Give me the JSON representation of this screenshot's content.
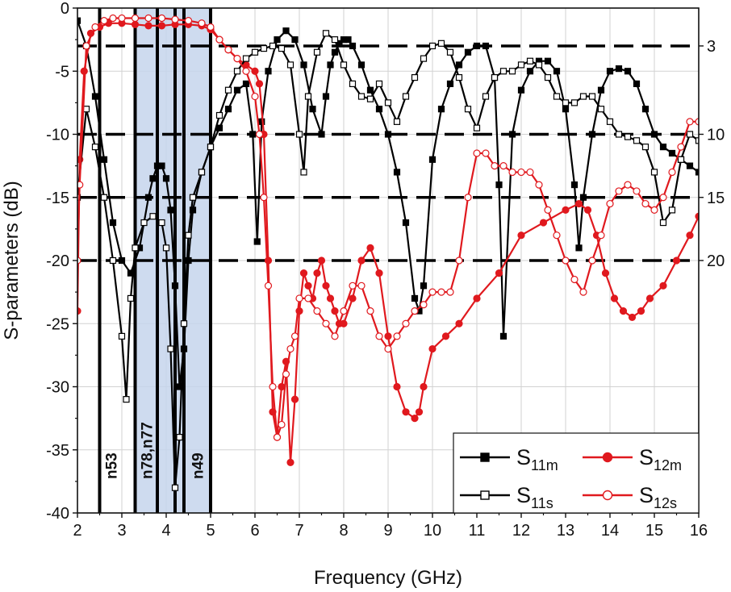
{
  "chart_data": {
    "type": "line",
    "xlabel": "Frequency (GHz)",
    "ylabel": "S-parameters (dB)",
    "xlim": [
      2,
      16
    ],
    "ylim": [
      -40,
      0
    ],
    "x_ticks": [
      "2",
      "3",
      "4",
      "5",
      "6",
      "7",
      "8",
      "9",
      "10",
      "11",
      "12",
      "13",
      "14",
      "15",
      "16"
    ],
    "y_ticks": [
      "0",
      "-5",
      "-10",
      "-15",
      "-20",
      "-25",
      "-30",
      "-35",
      "-40"
    ],
    "right_ticks": [
      "3",
      "10",
      "15",
      "20"
    ],
    "grid": true,
    "legend_position": "bottom-right",
    "reference_levels": [
      -3,
      -10,
      -15,
      -20
    ],
    "shaded_band": [
      3.3,
      5.0
    ],
    "band_lines": [
      2.5,
      3.3,
      3.8,
      4.2,
      4.4,
      5.0
    ],
    "band_labels": [
      {
        "text": "n53",
        "x": 2.75
      },
      {
        "text": "n78,n77",
        "x": 3.55
      },
      {
        "text": "n49",
        "x": 4.7
      }
    ],
    "series": [
      {
        "name": "S11m",
        "label_main": "S",
        "label_sub": "11m",
        "color": "#000000",
        "marker": "square-filled",
        "x": [
          2.0,
          2.2,
          2.4,
          2.6,
          2.8,
          3.0,
          3.2,
          3.4,
          3.6,
          3.7,
          3.8,
          3.9,
          4.0,
          4.1,
          4.2,
          4.3,
          4.4,
          4.5,
          4.6,
          4.8,
          5.0,
          5.2,
          5.4,
          5.6,
          5.8,
          5.95,
          6.05,
          6.15,
          6.3,
          6.5,
          6.7,
          6.9,
          7.1,
          7.3,
          7.5,
          7.6,
          7.7,
          7.8,
          7.9,
          8.0,
          8.1,
          8.2,
          8.4,
          8.6,
          8.8,
          9.0,
          9.2,
          9.4,
          9.6,
          9.7,
          9.8,
          10.0,
          10.2,
          10.4,
          10.6,
          10.8,
          11.0,
          11.2,
          11.4,
          11.5,
          11.6,
          11.8,
          12.0,
          12.2,
          12.4,
          12.6,
          12.8,
          13.0,
          13.2,
          13.3,
          13.4,
          13.6,
          13.8,
          14.0,
          14.2,
          14.4,
          14.6,
          14.8,
          15.0,
          15.2,
          15.4,
          15.6,
          15.8,
          16.0
        ],
        "y": [
          -1,
          -3,
          -7,
          -12,
          -17,
          -20,
          -21,
          -19,
          -15,
          -13.5,
          -12.5,
          -12.5,
          -13.5,
          -16,
          -22,
          -30,
          -27,
          -20,
          -16,
          -13,
          -11,
          -9.5,
          -8,
          -6.5,
          -6,
          -10,
          -18.5,
          -9,
          -5,
          -2.5,
          -1.8,
          -2.5,
          -4.5,
          -8,
          -10,
          -7,
          -4.5,
          -3.5,
          -2.8,
          -2.5,
          -2.5,
          -3,
          -4.5,
          -6.5,
          -8,
          -10,
          -13,
          -17,
          -23,
          -24,
          -22,
          -12,
          -8,
          -6,
          -4.5,
          -3.5,
          -3,
          -3,
          -5.5,
          -14,
          -26,
          -10,
          -6.5,
          -5,
          -4.2,
          -4.2,
          -5,
          -8,
          -14,
          -19,
          -15,
          -10,
          -6.5,
          -5,
          -4.8,
          -5,
          -6,
          -8,
          -10,
          -11,
          -11.5,
          -12,
          -12.5,
          -13
        ]
      },
      {
        "name": "S12m",
        "label_main": "S",
        "label_sub": "12m",
        "color": "#e0191e",
        "marker": "circle-filled",
        "x": [
          2.0,
          2.05,
          2.15,
          2.3,
          2.5,
          2.7,
          3.0,
          3.3,
          3.6,
          3.9,
          4.2,
          4.5,
          4.8,
          5.0,
          5.2,
          5.4,
          5.6,
          5.8,
          6.0,
          6.1,
          6.2,
          6.3,
          6.4,
          6.5,
          6.6,
          6.7,
          6.8,
          6.9,
          7.0,
          7.1,
          7.2,
          7.3,
          7.4,
          7.5,
          7.6,
          7.7,
          7.8,
          7.9,
          8.0,
          8.2,
          8.4,
          8.6,
          8.8,
          9.0,
          9.2,
          9.4,
          9.6,
          9.7,
          9.8,
          10.0,
          10.3,
          10.6,
          11.0,
          11.5,
          12.0,
          12.5,
          13.0,
          13.3,
          13.5,
          13.7,
          13.9,
          14.1,
          14.3,
          14.5,
          14.7,
          14.9,
          15.2,
          15.5,
          15.8,
          16.0
        ],
        "y": [
          -24,
          -12,
          -5,
          -2,
          -1.5,
          -1.2,
          -1.2,
          -1.3,
          -1.4,
          -1.4,
          -1.3,
          -1.3,
          -1.4,
          -1.7,
          -2.5,
          -3.3,
          -4,
          -4.5,
          -5,
          -6,
          -10,
          -20,
          -32,
          -34,
          -30,
          -28,
          -36,
          -31,
          -24,
          -21,
          -22,
          -23,
          -21,
          -20,
          -22,
          -23,
          -24,
          -25,
          -25,
          -23,
          -20,
          -19,
          -21,
          -26,
          -30,
          -32,
          -32.5,
          -32,
          -30,
          -27,
          -26,
          -25,
          -23,
          -21,
          -18,
          -17,
          -16,
          -15.5,
          -16,
          -18,
          -21,
          -23,
          -24,
          -24.5,
          -24,
          -23,
          -22,
          -20,
          -18,
          -16.5
        ]
      },
      {
        "name": "S11s",
        "label_main": "S",
        "label_sub": "11s",
        "color": "#000000",
        "marker": "square-open",
        "x": [
          2.0,
          2.2,
          2.4,
          2.6,
          2.8,
          3.0,
          3.1,
          3.2,
          3.3,
          3.5,
          3.7,
          3.9,
          4.0,
          4.1,
          4.2,
          4.3,
          4.4,
          4.5,
          4.6,
          4.8,
          5.0,
          5.2,
          5.4,
          5.6,
          5.8,
          6.0,
          6.2,
          6.4,
          6.6,
          6.8,
          7.0,
          7.1,
          7.2,
          7.4,
          7.6,
          7.8,
          8.0,
          8.2,
          8.4,
          8.6,
          8.8,
          9.0,
          9.2,
          9.4,
          9.6,
          9.8,
          10.0,
          10.2,
          10.4,
          10.6,
          10.8,
          11.0,
          11.2,
          11.4,
          11.6,
          11.8,
          12.0,
          12.2,
          12.4,
          12.6,
          12.8,
          13.0,
          13.2,
          13.4,
          13.6,
          13.8,
          14.0,
          14.2,
          14.4,
          14.6,
          14.8,
          15.0,
          15.2,
          15.4,
          15.6,
          15.8,
          16.0
        ],
        "y": [
          -15,
          -8,
          -11,
          -15,
          -20,
          -26,
          -31,
          -23,
          -19,
          -17,
          -16.5,
          -17,
          -19,
          -27,
          -38,
          -34,
          -25,
          -18,
          -15,
          -13,
          -11,
          -8.5,
          -6.5,
          -5,
          -4,
          -3.5,
          -3.2,
          -3,
          -3.2,
          -4.5,
          -10,
          -13,
          -7,
          -3.5,
          -2,
          -2.5,
          -4.5,
          -6,
          -7,
          -7.2,
          -6,
          -7.5,
          -9,
          -7,
          -5.5,
          -4,
          -3,
          -2.8,
          -3.5,
          -5.5,
          -8,
          -9.5,
          -7,
          -5.5,
          -5,
          -5,
          -4.5,
          -4.2,
          -4.5,
          -5.5,
          -7,
          -7.5,
          -7.5,
          -7,
          -7,
          -8,
          -9,
          -10,
          -10.2,
          -10.5,
          -11,
          -13,
          -17,
          -16,
          -12,
          -10,
          -10.5
        ]
      },
      {
        "name": "S12s",
        "label_main": "S",
        "label_sub": "12s",
        "color": "#e0191e",
        "marker": "circle-open",
        "x": [
          2.0,
          2.05,
          2.2,
          2.4,
          2.6,
          2.8,
          3.0,
          3.3,
          3.6,
          3.9,
          4.2,
          4.5,
          4.8,
          5.0,
          5.2,
          5.4,
          5.6,
          5.8,
          6.0,
          6.1,
          6.2,
          6.3,
          6.4,
          6.5,
          6.6,
          6.7,
          6.8,
          6.9,
          7.0,
          7.2,
          7.4,
          7.6,
          7.8,
          8.0,
          8.2,
          8.4,
          8.6,
          8.8,
          9.0,
          9.2,
          9.4,
          9.6,
          9.8,
          10.0,
          10.2,
          10.4,
          10.6,
          10.8,
          11.0,
          11.2,
          11.4,
          11.6,
          11.8,
          12.0,
          12.2,
          12.4,
          12.6,
          12.8,
          13.0,
          13.2,
          13.4,
          13.6,
          13.8,
          14.0,
          14.2,
          14.4,
          14.6,
          14.8,
          15.0,
          15.2,
          15.4,
          15.6,
          15.8,
          16.0
        ],
        "y": [
          -20,
          -14,
          -3,
          -1.5,
          -1,
          -0.8,
          -0.8,
          -0.8,
          -0.8,
          -0.8,
          -0.9,
          -1,
          -1.2,
          -1.5,
          -2.5,
          -3.3,
          -4,
          -5,
          -7,
          -10,
          -15,
          -22,
          -30,
          -34,
          -33,
          -29,
          -27,
          -26,
          -23,
          -23,
          -24,
          -25,
          -26,
          -24,
          -22,
          -22,
          -24,
          -26,
          -27,
          -26,
          -25,
          -24,
          -23.5,
          -22.5,
          -22.5,
          -22.5,
          -20,
          -15,
          -11.5,
          -11.5,
          -12.5,
          -12.5,
          -13,
          -13,
          -13,
          -14,
          -16,
          -18,
          -20,
          -21.5,
          -22.5,
          -20,
          -18,
          -15.5,
          -14.5,
          -14,
          -14.5,
          -15.5,
          -16,
          -15,
          -13,
          -11,
          -9,
          -9
        ]
      }
    ]
  }
}
